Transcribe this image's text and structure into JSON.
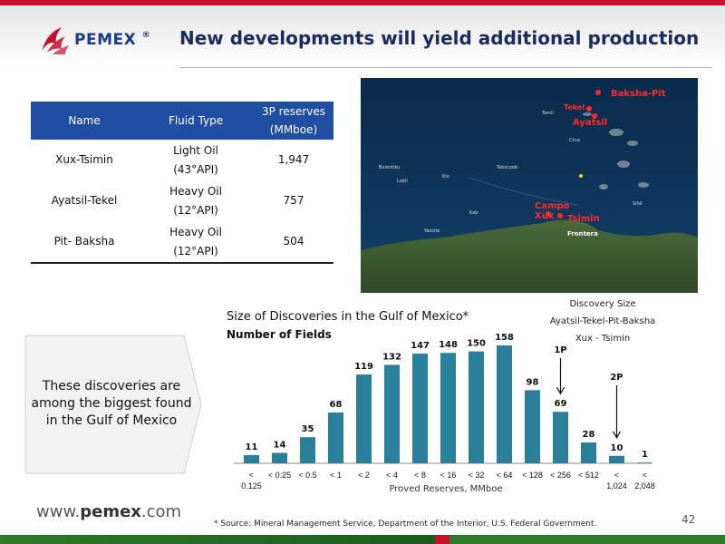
{
  "header": {
    "brand": "PEMEX",
    "title": "New developments will yield additional production"
  },
  "table": {
    "columns": [
      "Name",
      "Fluid Type",
      "3P reserves (MMboe)"
    ],
    "rows": [
      {
        "name": "Xux-Tsimin",
        "fluid_line1": "Light Oil",
        "fluid_line2": "(43°API)",
        "reserves": "1,947"
      },
      {
        "name": "Ayatsil-Tekel",
        "fluid_line1": "Heavy Oil",
        "fluid_line2": "(12°API)",
        "reserves": "757"
      },
      {
        "name": "Pit- Baksha",
        "fluid_line1": "Heavy Oil",
        "fluid_line2": "(12°API)",
        "reserves": "504"
      }
    ]
  },
  "map": {
    "labels": [
      "Baksha-Pit",
      "Tekel",
      "Ayatsil",
      "Campo Xux",
      "Tsimin",
      "Frontera"
    ]
  },
  "callout": {
    "text": "These discoveries are among the biggest found in the Gulf of Mexico"
  },
  "chart_data": {
    "type": "bar",
    "title": "Size of Discoveries in the Gulf of Mexico*",
    "subtitle": "Number of Fields",
    "xlabel": "Proved Reserves, MMboe",
    "ylabel": "",
    "categories": [
      "< 0.125",
      "< 0.25",
      "< 0.5",
      "< 1",
      "< 2",
      "< 4",
      "< 8",
      "< 16",
      "< 32",
      "< 64",
      "< 128",
      "< 256",
      "< 512",
      "< 1,024",
      "< 2,048"
    ],
    "values": [
      11,
      14,
      35,
      68,
      119,
      132,
      147,
      148,
      150,
      158,
      98,
      69,
      28,
      10,
      1
    ],
    "ylim": [
      0,
      170
    ],
    "grid": false,
    "bar_color": "#2a7f9a",
    "annotations": [
      {
        "label": "1P",
        "category": "< 256"
      },
      {
        "label": "2P",
        "category": "< 1,024"
      }
    ],
    "legend": {
      "title": "Discovery Size",
      "line1": "Ayatsil-Tekel-Pit-Baksha",
      "line2": "Xux - Tsimin"
    }
  },
  "footer": {
    "url_prefix": "www.",
    "url_brand": "pemex",
    "url_suffix": ".com",
    "footnote": "* Source: Mineral Management Service, Department of the Interior, U.S. Federal Government.",
    "page": "42"
  },
  "colors": {
    "header_blue": "#1f4ea3",
    "title_navy": "#1a2b60",
    "brand_red": "#c8102e",
    "brand_green": "#2d7a2d",
    "bar": "#2a7f9a"
  }
}
